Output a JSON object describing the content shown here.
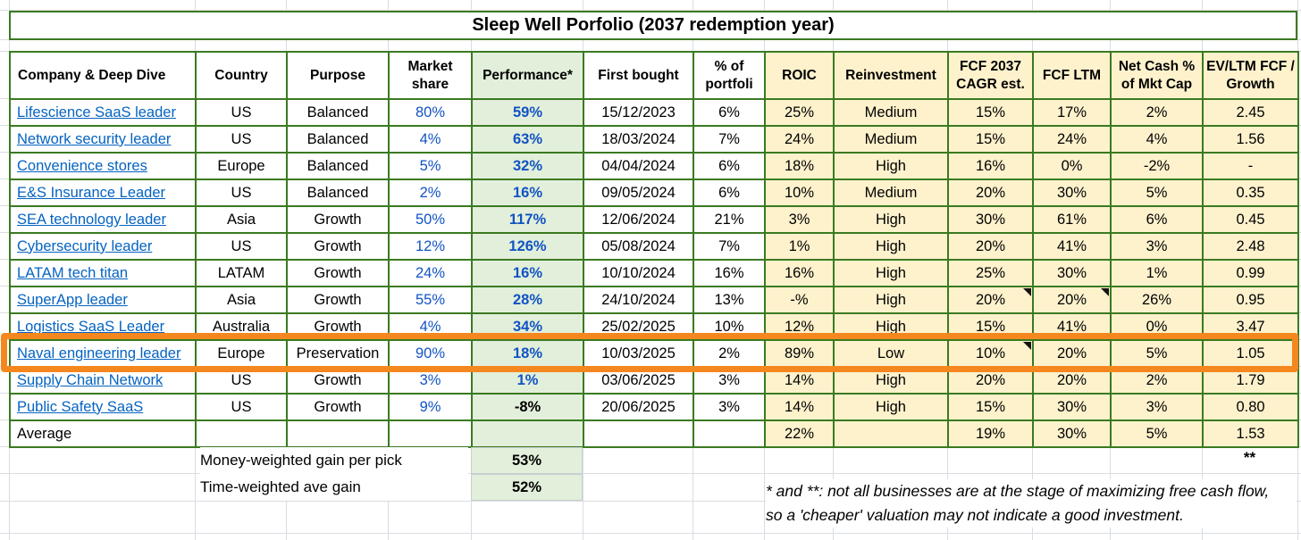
{
  "title": "Sleep Well Porfolio (2037 redemption year)",
  "table": {
    "columns": [
      "Company & Deep Dive",
      "Country",
      "Purpose",
      "Market share",
      "Performance*",
      "First bought",
      "% of portfoli",
      "ROIC",
      "Reinvestment",
      "FCF 2037 CAGR est.",
      "FCF LTM",
      "Net Cash % of Mkt Cap",
      "EV/LTM FCF / Growth"
    ],
    "rows": [
      {
        "company": "Lifescience SaaS leader",
        "country": "US",
        "purpose": "Balanced",
        "market_share": "80%",
        "performance": "59%",
        "first_bought": "15/12/2023",
        "pct_portfolio": "6%",
        "roic": "25%",
        "reinvestment": "Medium",
        "fcf_cagr": "15%",
        "fcf_ltm": "17%",
        "net_cash": "2%",
        "ev_fcf": "2.45",
        "notes": []
      },
      {
        "company": "Network security leader",
        "country": "US",
        "purpose": "Balanced",
        "market_share": "4%",
        "performance": "63%",
        "first_bought": "18/03/2024",
        "pct_portfolio": "7%",
        "roic": "24%",
        "reinvestment": "Medium",
        "fcf_cagr": "15%",
        "fcf_ltm": "24%",
        "net_cash": "4%",
        "ev_fcf": "1.56",
        "notes": []
      },
      {
        "company": "Convenience stores",
        "country": "Europe",
        "purpose": "Balanced",
        "market_share": "5%",
        "performance": "32%",
        "first_bought": "04/04/2024",
        "pct_portfolio": "6%",
        "roic": "18%",
        "reinvestment": "High",
        "fcf_cagr": "16%",
        "fcf_ltm": "0%",
        "net_cash": "-2%",
        "ev_fcf": "-",
        "notes": []
      },
      {
        "company": "E&S Insurance Leader",
        "country": "US",
        "purpose": "Balanced",
        "market_share": "2%",
        "performance": "16%",
        "first_bought": "09/05/2024",
        "pct_portfolio": "6%",
        "roic": "10%",
        "reinvestment": "Medium",
        "fcf_cagr": "20%",
        "fcf_ltm": "30%",
        "net_cash": "5%",
        "ev_fcf": "0.35",
        "notes": []
      },
      {
        "company": "SEA technology leader",
        "country": "Asia",
        "purpose": "Growth",
        "market_share": "50%",
        "performance": "117%",
        "first_bought": "12/06/2024",
        "pct_portfolio": "21%",
        "roic": "3%",
        "reinvestment": "High",
        "fcf_cagr": "30%",
        "fcf_ltm": "61%",
        "net_cash": "6%",
        "ev_fcf": "0.45",
        "notes": []
      },
      {
        "company": "Cybersecurity leader",
        "country": "US",
        "purpose": "Growth",
        "market_share": "12%",
        "performance": "126%",
        "first_bought": "05/08/2024",
        "pct_portfolio": "7%",
        "roic": "1%",
        "reinvestment": "High",
        "fcf_cagr": "20%",
        "fcf_ltm": "41%",
        "net_cash": "3%",
        "ev_fcf": "2.48",
        "notes": []
      },
      {
        "company": "LATAM tech titan",
        "country": "LATAM",
        "purpose": "Growth",
        "market_share": "24%",
        "performance": "16%",
        "first_bought": "10/10/2024",
        "pct_portfolio": "16%",
        "roic": "16%",
        "reinvestment": "High",
        "fcf_cagr": "25%",
        "fcf_ltm": "30%",
        "net_cash": "1%",
        "ev_fcf": "0.99",
        "notes": []
      },
      {
        "company": "SuperApp leader",
        "country": "Asia",
        "purpose": "Growth",
        "market_share": "55%",
        "performance": "28%",
        "first_bought": "24/10/2024",
        "pct_portfolio": "13%",
        "roic": "-%",
        "reinvestment": "High",
        "fcf_cagr": "20%",
        "fcf_ltm": "20%",
        "net_cash": "26%",
        "ev_fcf": "0.95",
        "notes": [
          "fcf_cagr",
          "fcf_ltm"
        ]
      },
      {
        "company": "Logistics SaaS Leader",
        "country": "Australia",
        "purpose": "Growth",
        "market_share": "4%",
        "performance": "34%",
        "first_bought": "25/02/2025",
        "pct_portfolio": "10%",
        "roic": "12%",
        "reinvestment": "High",
        "fcf_cagr": "15%",
        "fcf_ltm": "41%",
        "net_cash": "0%",
        "ev_fcf": "3.47",
        "notes": []
      },
      {
        "company": "Naval engineering leader",
        "country": "Europe",
        "purpose": "Preservation",
        "market_share": "90%",
        "performance": "18%",
        "first_bought": "10/03/2025",
        "pct_portfolio": "2%",
        "roic": "89%",
        "reinvestment": "Low",
        "fcf_cagr": "10%",
        "fcf_ltm": "20%",
        "net_cash": "5%",
        "ev_fcf": "1.05",
        "notes": [
          "fcf_cagr"
        ]
      },
      {
        "company": "Supply Chain Network",
        "country": "US",
        "purpose": "Growth",
        "market_share": "3%",
        "performance": "1%",
        "first_bought": "03/06/2025",
        "pct_portfolio": "3%",
        "roic": "14%",
        "reinvestment": "High",
        "fcf_cagr": "20%",
        "fcf_ltm": "20%",
        "net_cash": "2%",
        "ev_fcf": "1.79",
        "notes": []
      },
      {
        "company": "Public Safety SaaS",
        "country": "US",
        "purpose": "Growth",
        "market_share": "9%",
        "performance": "-8%",
        "first_bought": "20/06/2025",
        "pct_portfolio": "3%",
        "roic": "14%",
        "reinvestment": "High",
        "fcf_cagr": "15%",
        "fcf_ltm": "30%",
        "net_cash": "3%",
        "ev_fcf": "0.80",
        "notes": []
      }
    ],
    "average": {
      "company": "Average",
      "country": "",
      "purpose": "",
      "market_share": "",
      "performance": "",
      "first_bought": "",
      "pct_portfolio": "",
      "roic": "22%",
      "reinvestment": "",
      "fcf_cagr": "19%",
      "fcf_ltm": "30%",
      "net_cash": "5%",
      "ev_fcf": "1.53"
    }
  },
  "highlight": {
    "company": "Naval engineering leader",
    "color": "#f5871f"
  },
  "footer": {
    "money_weighted_label": "Money-weighted gain per pick",
    "money_weighted_value": "53%",
    "time_weighted_label": "Time-weighted ave gain",
    "time_weighted_value": "52%",
    "double_star": "**",
    "footnote_line1": "* and **: not all businesses are at the stage of maximizing free cash flow,",
    "footnote_line2": "so a 'cheaper' valuation may not indicate a good investment."
  },
  "colors": {
    "border_green": "#3a7a21",
    "fill_light_green": "#e2efda",
    "fill_cream": "#fef2cc",
    "hyperlink_blue": "#0563c1",
    "value_blue": "#1253c4",
    "highlight_orange": "#f5871f"
  }
}
